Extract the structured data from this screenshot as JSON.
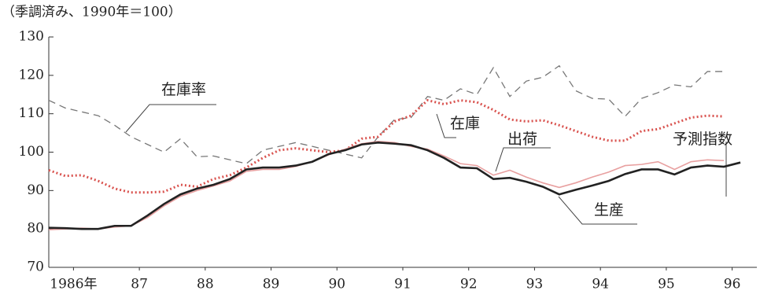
{
  "chart_data": {
    "type": "line",
    "subtitle": "（季調済み、1990年＝100）",
    "annotation": "予測指数",
    "x": [
      1986,
      1986.25,
      1986.5,
      1986.75,
      1987,
      1987.25,
      1987.5,
      1987.75,
      1988,
      1988.25,
      1988.5,
      1988.75,
      1989,
      1989.25,
      1989.5,
      1989.75,
      1990,
      1990.25,
      1990.5,
      1990.75,
      1991,
      1991.25,
      1991.5,
      1991.75,
      1992,
      1992.25,
      1992.5,
      1992.75,
      1993,
      1993.25,
      1993.5,
      1993.75,
      1994,
      1994.25,
      1994.5,
      1994.75,
      1995,
      1995.25,
      1995.5,
      1995.75,
      1996,
      1996.25,
      1996.5
    ],
    "xlim": [
      1986,
      1996.75
    ],
    "xticks": [
      {
        "value": 1986.375,
        "label": "1986年"
      },
      {
        "value": 1987.375,
        "label": "87"
      },
      {
        "value": 1988.375,
        "label": "88"
      },
      {
        "value": 1989.375,
        "label": "89"
      },
      {
        "value": 1990.375,
        "label": "90"
      },
      {
        "value": 1991.375,
        "label": "91"
      },
      {
        "value": 1992.375,
        "label": "92"
      },
      {
        "value": 1993.375,
        "label": "93"
      },
      {
        "value": 1994.375,
        "label": "94"
      },
      {
        "value": 1995.375,
        "label": "95"
      },
      {
        "value": 1996.375,
        "label": "96"
      }
    ],
    "ylim": [
      70,
      130
    ],
    "yticks": [
      70,
      80,
      90,
      100,
      110,
      120,
      130
    ],
    "series": [
      {
        "name": "在庫率",
        "color": "#777777",
        "dash": "9 6",
        "width": 1.3,
        "values": [
          113.5,
          111.5,
          110.5,
          109.5,
          107,
          104,
          102,
          100,
          103.5,
          98.8,
          99,
          98,
          97,
          100.5,
          101.5,
          102.5,
          101.5,
          100.5,
          99.5,
          98.5,
          104,
          108.5,
          109,
          114.5,
          113.5,
          116.5,
          115,
          122,
          114.5,
          118.5,
          119.5,
          122.5,
          116,
          114,
          113.8,
          109.3,
          114,
          115.5,
          117.5,
          117,
          121,
          121,
          null
        ]
      },
      {
        "name": "在庫",
        "color": "#d9534f",
        "dash": "2 3",
        "width": 3,
        "values": [
          95.3,
          93.8,
          94,
          92.5,
          90.5,
          89.5,
          89.5,
          89.7,
          91.5,
          91,
          93,
          94,
          96,
          98.5,
          100.5,
          101,
          100.5,
          100,
          100.5,
          103.5,
          104,
          108,
          109.5,
          113.5,
          112.5,
          113.5,
          113,
          111,
          108.5,
          108,
          108.3,
          107,
          105.5,
          104,
          103,
          103,
          105.5,
          106,
          107.5,
          109,
          109.5,
          109.3,
          null
        ]
      },
      {
        "name": "出荷",
        "color": "#e8a0a0",
        "dash": "none",
        "width": 1.6,
        "values": [
          79.8,
          80,
          80.2,
          80,
          80.5,
          80.8,
          83,
          86,
          88.5,
          90,
          91.2,
          92.5,
          95,
          95.5,
          95.5,
          96.3,
          97.5,
          99.3,
          100.8,
          102.2,
          102.8,
          102.5,
          101.5,
          100.8,
          99,
          97,
          96.5,
          94,
          95.3,
          93.5,
          92,
          90.8,
          92,
          93.5,
          94.8,
          96.5,
          96.8,
          97.5,
          95.5,
          97.5,
          98,
          97.8,
          null
        ]
      },
      {
        "name": "生産",
        "color": "#222222",
        "dash": "none",
        "width": 2.6,
        "values": [
          80.3,
          80.2,
          80,
          80,
          80.8,
          80.8,
          83.5,
          86.5,
          89,
          90.5,
          91.5,
          93,
          95.5,
          96,
          96,
          96.5,
          97.5,
          99.5,
          100.5,
          102,
          102.5,
          102.2,
          101.8,
          100.5,
          98.5,
          96,
          95.8,
          93,
          93.3,
          92.3,
          91,
          89,
          90.2,
          91.3,
          92.5,
          94.3,
          95.5,
          95.5,
          94.2,
          96,
          96.5,
          96.2,
          97.3
        ]
      }
    ]
  }
}
